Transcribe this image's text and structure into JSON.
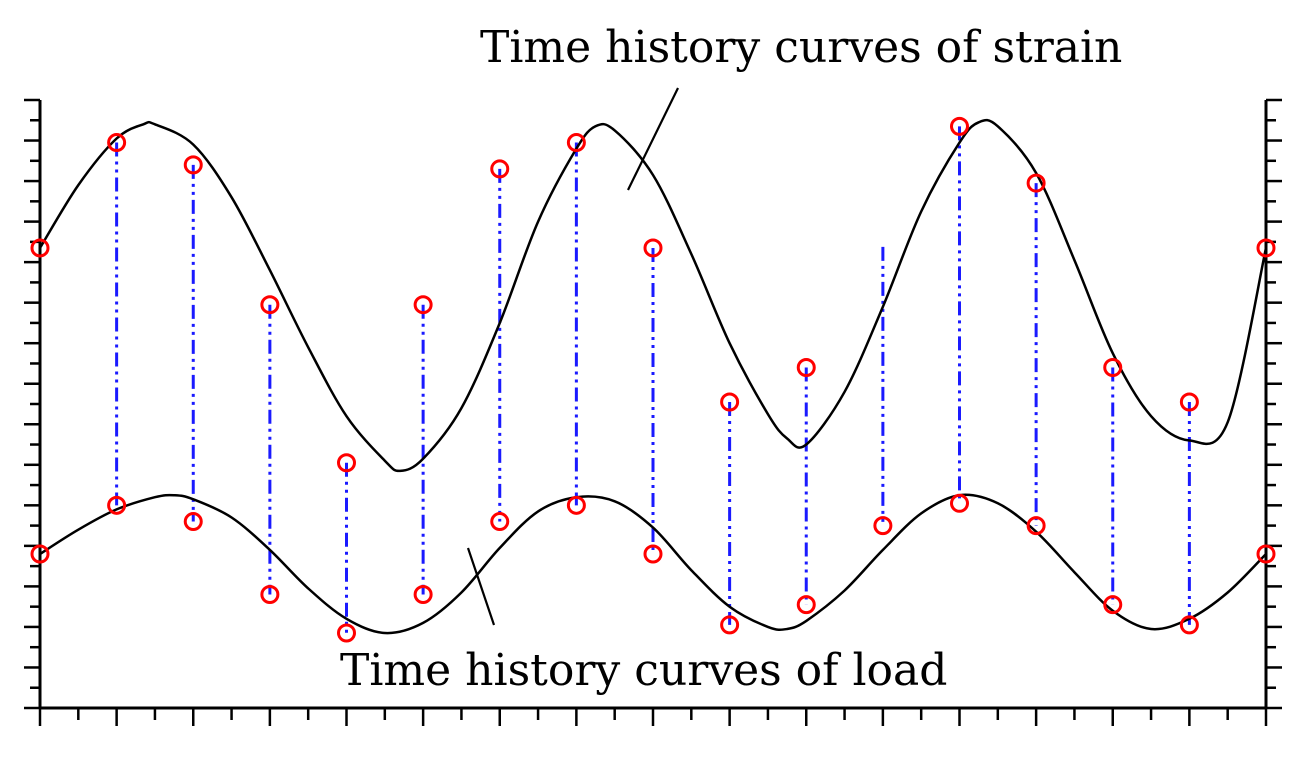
{
  "annotations": {
    "strain_label": "Time history curves of strain",
    "load_label": "Time history curves of load"
  },
  "colors": {
    "curve": "#000000",
    "connector": "#1a1aff",
    "marker": "#ff0000",
    "axis": "#000000",
    "background": "#ffffff"
  },
  "chart_data": {
    "type": "line",
    "title": "",
    "xlabel": "",
    "ylabel": "",
    "grid": false,
    "x_range": [
      0,
      32
    ],
    "y_range": [
      0,
      30
    ],
    "x_tick_count": 33,
    "y_tick_count": 31,
    "series": [
      {
        "name": "Time history curves of strain",
        "curve": [
          [
            0,
            22.7
          ],
          [
            1,
            25.8
          ],
          [
            2,
            28.1
          ],
          [
            2.7,
            28.8
          ],
          [
            3,
            28.8
          ],
          [
            4,
            27.8
          ],
          [
            5,
            25.2
          ],
          [
            6,
            21.6
          ],
          [
            7,
            17.8
          ],
          [
            8,
            14.4
          ],
          [
            9,
            12.2
          ],
          [
            9.4,
            11.7
          ],
          [
            10,
            12.3
          ],
          [
            11,
            14.8
          ],
          [
            12,
            19.0
          ],
          [
            13,
            24.0
          ],
          [
            14,
            27.6
          ],
          [
            14.5,
            28.7
          ],
          [
            15,
            28.5
          ],
          [
            16,
            26.3
          ],
          [
            17,
            22.4
          ],
          [
            18,
            18.0
          ],
          [
            19,
            14.5
          ],
          [
            19.5,
            13.3
          ],
          [
            20,
            13.0
          ],
          [
            21,
            15.6
          ],
          [
            22,
            19.8
          ],
          [
            23,
            24.5
          ],
          [
            24,
            27.9
          ],
          [
            24.5,
            28.9
          ],
          [
            25,
            28.7
          ],
          [
            26,
            26.4
          ],
          [
            27,
            22.1
          ],
          [
            28,
            17.5
          ],
          [
            29,
            14.4
          ],
          [
            30,
            13.2
          ],
          [
            31,
            14.1
          ],
          [
            32,
            22.7
          ]
        ],
        "sampled": [
          [
            0,
            22.7
          ],
          [
            2,
            27.9
          ],
          [
            4,
            26.8
          ],
          [
            6,
            19.9
          ],
          [
            8,
            12.1
          ],
          [
            10,
            19.9
          ],
          [
            12,
            26.6
          ],
          [
            14,
            27.9
          ],
          [
            16,
            22.7
          ],
          [
            18,
            15.1
          ],
          [
            20,
            16.8
          ],
          [
            24,
            28.7
          ],
          [
            26,
            25.9
          ],
          [
            28,
            16.8
          ],
          [
            30,
            15.1
          ],
          [
            32,
            22.7
          ]
        ]
      },
      {
        "name": "Time history curves of load",
        "curve": [
          [
            0,
            7.6
          ],
          [
            1,
            8.8
          ],
          [
            2,
            9.8
          ],
          [
            3,
            10.4
          ],
          [
            3.5,
            10.5
          ],
          [
            4,
            10.3
          ],
          [
            5,
            9.4
          ],
          [
            6,
            7.8
          ],
          [
            7,
            5.9
          ],
          [
            8,
            4.4
          ],
          [
            9,
            3.7
          ],
          [
            10,
            4.2
          ],
          [
            11,
            5.7
          ],
          [
            12,
            7.9
          ],
          [
            13,
            9.7
          ],
          [
            14,
            10.4
          ],
          [
            15,
            10.2
          ],
          [
            16,
            8.9
          ],
          [
            17,
            6.8
          ],
          [
            18,
            5.0
          ],
          [
            19,
            4.0
          ],
          [
            19.5,
            3.9
          ],
          [
            20,
            4.3
          ],
          [
            21,
            5.8
          ],
          [
            22,
            7.8
          ],
          [
            23,
            9.6
          ],
          [
            24,
            10.5
          ],
          [
            25,
            10.1
          ],
          [
            26,
            8.7
          ],
          [
            27,
            6.7
          ],
          [
            28,
            4.8
          ],
          [
            29,
            3.9
          ],
          [
            30,
            4.4
          ],
          [
            31,
            5.7
          ],
          [
            32,
            7.6
          ]
        ],
        "sampled": [
          [
            0,
            7.6
          ],
          [
            2,
            10.0
          ],
          [
            4,
            9.2
          ],
          [
            6,
            5.6
          ],
          [
            8,
            3.7
          ],
          [
            10,
            5.6
          ],
          [
            12,
            9.2
          ],
          [
            14,
            10.0
          ],
          [
            16,
            7.6
          ],
          [
            18,
            4.1
          ],
          [
            20,
            5.1
          ],
          [
            22,
            9.0
          ],
          [
            24,
            10.1
          ],
          [
            26,
            9.0
          ],
          [
            28,
            5.1
          ],
          [
            30,
            4.1
          ],
          [
            32,
            7.6
          ]
        ]
      }
    ],
    "connectors_x": [
      2,
      4,
      6,
      8,
      10,
      12,
      14,
      16,
      18,
      20,
      22,
      24,
      26,
      28,
      30
    ]
  }
}
